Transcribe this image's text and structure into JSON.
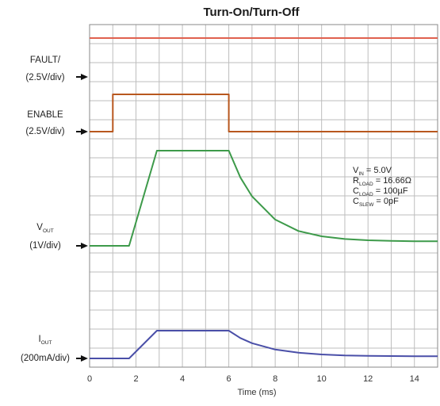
{
  "chart_data": {
    "type": "line",
    "title": "Turn-On/Turn-Off",
    "xlabel": "Time (ms)",
    "xlim": [
      0,
      15
    ],
    "x_ticks": [
      "0",
      "2",
      "4",
      "6",
      "8",
      "10",
      "12",
      "14"
    ],
    "x_tick_values": [
      0,
      2,
      4,
      6,
      8,
      10,
      12,
      14
    ],
    "grid": true,
    "channels": [
      {
        "id": "fault",
        "label": "FAULT/",
        "scale": "(2.5V/div)",
        "color": "#e0614f"
      },
      {
        "id": "enable",
        "label": "ENABLE",
        "scale": "(2.5V/div)",
        "color": "#b8571e"
      },
      {
        "id": "vout",
        "label": "V",
        "label_sub": "OUT",
        "scale": "(1V/div)",
        "color": "#3d9a4a"
      },
      {
        "id": "iout",
        "label": "I",
        "label_sub": "OUT",
        "scale": "(200mA/div)",
        "color": "#4a4fa8"
      }
    ],
    "series": [
      {
        "name": "FAULT/",
        "x": [
          0,
          15
        ],
        "y": [
          1,
          1
        ]
      },
      {
        "name": "ENABLE",
        "x": [
          0,
          1,
          1,
          6,
          6,
          15
        ],
        "y": [
          0,
          0,
          1,
          1,
          0,
          0
        ]
      },
      {
        "name": "VOUT",
        "x": [
          0,
          1.7,
          2.9,
          6,
          6.5,
          7,
          8,
          9,
          10,
          11,
          12,
          13,
          14,
          15
        ],
        "y": [
          0,
          0,
          5,
          5,
          3.59,
          2.6,
          1.38,
          0.78,
          0.5,
          0.36,
          0.29,
          0.26,
          0.24,
          0.24
        ]
      },
      {
        "name": "IOUT",
        "x": [
          0,
          1.7,
          2.9,
          6,
          6.5,
          7,
          8,
          9,
          10,
          11,
          12,
          13,
          14,
          15
        ],
        "y": [
          0,
          0,
          1.4,
          1.4,
          1.03,
          0.77,
          0.45,
          0.29,
          0.2,
          0.15,
          0.13,
          0.12,
          0.11,
          0.11
        ]
      }
    ],
    "annotation": {
      "lines": [
        {
          "main": "V",
          "sub": "IN",
          "rest": " = 5.0V"
        },
        {
          "main": "R",
          "sub": "LOAD",
          "rest": " = 16.66Ω"
        },
        {
          "main": "C",
          "sub": "LOAD",
          "rest": " = 100µF"
        },
        {
          "main": "C",
          "sub": "SLEW",
          "rest": " = 0pF"
        }
      ]
    }
  }
}
